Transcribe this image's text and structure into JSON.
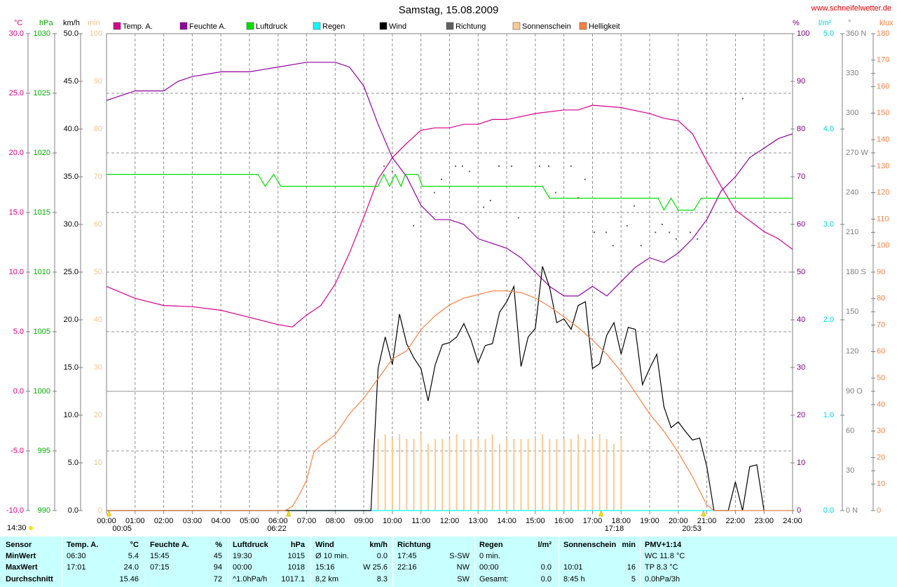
{
  "chart_data": {
    "type": "line",
    "title": "Samstag, 15.08.2009",
    "source": "www.schneifelwetter.de",
    "update_time": "14:30",
    "grid": true,
    "xlim": [
      0,
      24
    ],
    "xticks": [
      {
        "value": 0,
        "label": "00:00"
      },
      {
        "value": 1,
        "label": "01:00"
      },
      {
        "value": 2,
        "label": "02:00"
      },
      {
        "value": 3,
        "label": "03:00"
      },
      {
        "value": 4,
        "label": "04:00"
      },
      {
        "value": 5,
        "label": "05:00"
      },
      {
        "value": 6,
        "label": "06:00"
      },
      {
        "value": 7,
        "label": "07:00"
      },
      {
        "value": 8,
        "label": "08:00"
      },
      {
        "value": 9,
        "label": "09:00"
      },
      {
        "value": 10,
        "label": "10:00"
      },
      {
        "value": 11,
        "label": "11:00"
      },
      {
        "value": 12,
        "label": "12:00"
      },
      {
        "value": 13,
        "label": "13:00"
      },
      {
        "value": 14,
        "label": "14:00"
      },
      {
        "value": 15,
        "label": "15:00"
      },
      {
        "value": 16,
        "label": "16:00"
      },
      {
        "value": 17,
        "label": "17:00"
      },
      {
        "value": 18,
        "label": "18:00"
      },
      {
        "value": 19,
        "label": "19:00"
      },
      {
        "value": 20,
        "label": "20:00"
      },
      {
        "value": 21,
        "label": "21:00"
      },
      {
        "value": 22,
        "label": "22:00"
      },
      {
        "value": 23,
        "label": "23:00"
      },
      {
        "value": 24,
        "label": "24:00"
      }
    ],
    "annotations": [
      {
        "x": 0.083,
        "label": "00:05"
      },
      {
        "x": 6.367,
        "label": "06:22"
      },
      {
        "x": 17.3,
        "label": "17:18"
      },
      {
        "x": 20.883,
        "label": "20:53"
      }
    ],
    "axes": [
      {
        "name": "°C",
        "color": "#e0007f",
        "ylim": [
          -10,
          30
        ],
        "yticks": [
          {
            "value": -10,
            "label": "-10.0"
          },
          {
            "value": -5,
            "label": "-5.0"
          },
          {
            "value": 0,
            "label": "0.0"
          },
          {
            "value": 5,
            "label": "5.0"
          },
          {
            "value": 10,
            "label": "10.0"
          },
          {
            "value": 15,
            "label": "15.0"
          },
          {
            "value": 20,
            "label": "20.0"
          },
          {
            "value": 25,
            "label": "25.0"
          },
          {
            "value": 30,
            "label": "30.0"
          }
        ]
      },
      {
        "name": "hPa",
        "color": "#00b000",
        "ylim": [
          990,
          1030
        ],
        "yticks": [
          990,
          995,
          1000,
          1005,
          1010,
          1015,
          1020,
          1025,
          1030
        ]
      },
      {
        "name": "km/h",
        "color": "#000000",
        "ylim": [
          0,
          50
        ],
        "yticks": [
          {
            "value": 0,
            "label": "0.0"
          },
          {
            "value": 5,
            "label": "5.0"
          },
          {
            "value": 10,
            "label": "10.0"
          },
          {
            "value": 15,
            "label": "15.0"
          },
          {
            "value": 20,
            "label": "20.0"
          },
          {
            "value": 25,
            "label": "25.0"
          },
          {
            "value": 30,
            "label": "30.0"
          },
          {
            "value": 35,
            "label": "35.0"
          },
          {
            "value": 40,
            "label": "40.0"
          },
          {
            "value": 45,
            "label": "45.0"
          },
          {
            "value": 50,
            "label": "50.0"
          }
        ]
      },
      {
        "name": "min",
        "color": "#f5c48a",
        "ylim": [
          0,
          100
        ],
        "yticks": [
          0,
          10,
          20,
          30,
          40,
          50,
          60,
          70,
          80,
          90,
          100
        ]
      },
      {
        "name": "%",
        "color": "#800080",
        "ylim": [
          0,
          100
        ],
        "yticks": [
          0,
          10,
          20,
          30,
          40,
          50,
          60,
          70,
          80,
          90,
          100
        ]
      },
      {
        "name": "l/m²",
        "color": "#00d8d8",
        "ylim": [
          0,
          5
        ],
        "yticks": [
          {
            "value": 0,
            "label": "0.0"
          },
          {
            "value": 1,
            "label": "1.0"
          },
          {
            "value": 2,
            "label": "2.0"
          },
          {
            "value": 3,
            "label": "3.0"
          },
          {
            "value": 4,
            "label": "4.0"
          },
          {
            "value": 5,
            "label": "5.0"
          }
        ]
      },
      {
        "name": "°",
        "color": "#808080",
        "ylim": [
          0,
          360
        ],
        "yticks": [
          {
            "value": 0,
            "label": "0 N"
          },
          30,
          60,
          {
            "value": 90,
            "label": "90 O"
          },
          120,
          150,
          {
            "value": 180,
            "label": "180 S"
          },
          210,
          240,
          {
            "value": 270,
            "label": "270 W"
          },
          300,
          330,
          {
            "value": 360,
            "label": "360 N"
          }
        ]
      },
      {
        "name": "klux",
        "color": "#ff8040",
        "ylim": [
          0,
          180
        ],
        "yticks": [
          0,
          10,
          20,
          30,
          40,
          50,
          60,
          70,
          80,
          90,
          100,
          110,
          120,
          130,
          140,
          150,
          160,
          170,
          180
        ]
      }
    ],
    "series": [
      {
        "name": "Temp. A.",
        "type": "line",
        "axis": 0,
        "color": "#d8008c",
        "x": [
          0,
          1,
          2,
          3,
          4,
          5,
          6,
          6.5,
          7,
          7.5,
          8,
          8.5,
          9,
          9.5,
          10,
          10.5,
          11,
          11.5,
          12,
          12.5,
          13,
          13.5,
          14,
          15,
          16,
          16.5,
          17,
          18,
          19,
          19.5,
          20,
          20.5,
          21,
          21.5,
          22,
          22.5,
          23,
          23.5,
          24
        ],
        "values": [
          8.8,
          7.8,
          7.2,
          7.1,
          6.8,
          6.2,
          5.6,
          5.4,
          6.4,
          7.2,
          9.0,
          11.6,
          14.6,
          17.8,
          19.6,
          20.8,
          21.9,
          22.1,
          22.1,
          22.4,
          22.4,
          22.8,
          22.8,
          23.3,
          23.6,
          23.6,
          24.0,
          23.8,
          23.3,
          22.9,
          22.7,
          21.6,
          19.3,
          17.2,
          15.2,
          14.3,
          13.4,
          12.8,
          11.9
        ]
      },
      {
        "name": "Feuchte A.",
        "type": "line",
        "axis": 4,
        "color": "#9000a0",
        "x": [
          0,
          1,
          2,
          2.5,
          3,
          4,
          5,
          6,
          7,
          8,
          8.5,
          9,
          9.5,
          10,
          10.5,
          11,
          11.5,
          12,
          12.5,
          13,
          13.5,
          14,
          14.5,
          15,
          15.5,
          16,
          16.5,
          17,
          17.5,
          18,
          18.5,
          19,
          19.5,
          20,
          20.5,
          21,
          21.5,
          22,
          22.5,
          23,
          23.5,
          24
        ],
        "values": [
          86,
          88,
          88,
          90,
          91,
          92,
          92,
          93,
          94,
          94,
          93,
          89,
          81,
          74,
          70,
          64,
          61,
          61,
          60,
          57,
          56,
          55,
          53,
          50,
          47,
          45,
          45,
          47,
          45,
          48,
          51,
          53,
          52,
          54,
          57,
          61,
          67,
          70,
          74,
          76,
          78,
          79
        ]
      },
      {
        "name": "Luftdruck",
        "type": "line",
        "axis": 1,
        "color": "#00e000",
        "x": [
          0,
          5.3,
          5.55,
          5.85,
          6.1,
          9.5,
          9.7,
          9.9,
          10.1,
          10.3,
          10.45,
          10.9,
          11.05,
          15.25,
          15.5,
          19.3,
          19.5,
          19.75,
          20.0,
          20.55,
          20.8,
          24
        ],
        "values": [
          1018.2,
          1018.2,
          1017.2,
          1018.2,
          1017.2,
          1017.2,
          1018.2,
          1017.2,
          1018.2,
          1017.2,
          1018.2,
          1018.2,
          1017.2,
          1017.2,
          1016.2,
          1016.2,
          1015.2,
          1016.2,
          1015.2,
          1015.2,
          1016.2,
          1016.2
        ]
      },
      {
        "name": "Regen",
        "type": "line",
        "axis": 5,
        "color": "#00ffff",
        "x": [
          0,
          24
        ],
        "values": [
          0,
          0
        ]
      },
      {
        "name": "Wind",
        "type": "line",
        "axis": 2,
        "color": "#000000",
        "x": [
          0,
          9.25,
          9.5,
          9.75,
          10,
          10.25,
          10.5,
          10.75,
          11,
          11.25,
          11.5,
          11.75,
          12,
          12.25,
          12.5,
          12.75,
          13,
          13.25,
          13.5,
          13.75,
          14,
          14.25,
          14.5,
          14.75,
          15,
          15.25,
          15.5,
          15.75,
          16,
          16.25,
          16.5,
          16.75,
          17,
          17.25,
          17.5,
          17.75,
          18,
          18.25,
          18.5,
          18.75,
          19,
          19.25,
          19.5,
          19.75,
          20,
          20.25,
          20.5,
          20.75,
          21,
          21.25,
          21.75,
          22,
          22.25,
          22.5,
          22.75,
          23
        ],
        "values": [
          0,
          0,
          14.9,
          18.2,
          15.3,
          20.6,
          17.5,
          16.0,
          14.9,
          11.5,
          15.3,
          17.4,
          17.6,
          18.2,
          19.6,
          17.9,
          15.5,
          17.3,
          17.5,
          20.8,
          21.9,
          23.5,
          15.1,
          18.2,
          19.1,
          25.6,
          23.4,
          19.7,
          20.1,
          19.0,
          21.5,
          21.9,
          14.9,
          15.4,
          18.4,
          19.7,
          16.4,
          19.2,
          19.0,
          13.2,
          14.9,
          16.4,
          10.9,
          8.7,
          9.3,
          8.3,
          7.4,
          7.6,
          4.6,
          0,
          0,
          3.0,
          0,
          4.6,
          4.8,
          0
        ]
      },
      {
        "name": "Richtung",
        "type": "points",
        "axis": 6,
        "color": "#606060",
        "x": [
          9.71,
          10.0,
          10.74,
          11.47,
          11.72,
          12.21,
          12.45,
          12.7,
          13.19,
          13.43,
          13.73,
          14.17,
          14.41,
          15.15,
          15.47,
          15.71,
          16.25,
          16.5,
          16.74,
          17.06,
          17.48,
          17.72,
          18.21,
          18.46,
          18.7,
          19.2,
          19.44,
          19.69,
          19.93,
          20.42,
          20.67,
          22.26
        ],
        "values": [
          260,
          256,
          215,
          240,
          250,
          260,
          260,
          256,
          229,
          234,
          260,
          260,
          221,
          260,
          260,
          240,
          260,
          236,
          250,
          210,
          210,
          200,
          215,
          230,
          200,
          210,
          216,
          210,
          205,
          210,
          205,
          311
        ]
      },
      {
        "name": "Sonnenschein",
        "type": "bars",
        "axis": 3,
        "color": "#ffc890",
        "x": [
          9.5,
          9.75,
          10,
          10.25,
          10.5,
          10.75,
          11,
          11.25,
          11.5,
          11.75,
          12,
          12.25,
          12.5,
          12.75,
          13,
          13.25,
          13.5,
          13.75,
          14,
          14.25,
          14.5,
          14.75,
          15,
          15.25,
          15.5,
          15.75,
          16,
          16.25,
          16.5,
          16.75,
          17,
          17.25,
          17.5,
          17.75,
          18
        ],
        "values": [
          15,
          16,
          15,
          16,
          15,
          15,
          16,
          14,
          15,
          15,
          15,
          16,
          15,
          15,
          15,
          15,
          16,
          14,
          15,
          15,
          15,
          15,
          15,
          16,
          15,
          15,
          15,
          15,
          16,
          15,
          15,
          16,
          15,
          14,
          15
        ]
      },
      {
        "name": "Helligkeit",
        "type": "line",
        "axis": 7,
        "color": "#ff8040",
        "x": [
          0,
          6.25,
          6.5,
          6.75,
          7,
          7.25,
          7.5,
          8,
          8.5,
          9,
          9.5,
          10,
          10.5,
          11,
          11.5,
          12,
          12.5,
          13,
          13.5,
          14,
          14.5,
          15,
          15.5,
          16,
          16.5,
          17,
          17.5,
          18,
          18.5,
          19,
          19.5,
          20,
          20.5,
          20.75,
          21,
          21.25,
          24
        ],
        "values": [
          0,
          0,
          1.6,
          6.1,
          11.4,
          22,
          24.6,
          28.6,
          36.5,
          42.4,
          49.8,
          57.2,
          60.3,
          68.3,
          73.6,
          77.6,
          80.2,
          81.5,
          82.9,
          82.9,
          82.3,
          80.2,
          77.0,
          73.1,
          69.1,
          64.3,
          59.0,
          52.4,
          44.5,
          36.5,
          29.9,
          22.0,
          12.7,
          7.4,
          2.1,
          0,
          0
        ]
      }
    ]
  },
  "table": {
    "row_labels": [
      "Sensor",
      "MinWert",
      "MaxWert",
      "Durchschnitt"
    ],
    "columns": [
      {
        "header": "Temp. A.",
        "unit": "°C",
        "rows": [
          [
            "06:30",
            "5.4"
          ],
          [
            "17:01",
            "24.0"
          ],
          [
            null,
            "15.46"
          ]
        ]
      },
      {
        "header": "Feuchte A.",
        "unit": "%",
        "rows": [
          [
            "15:45",
            "45"
          ],
          [
            "07:15",
            "94"
          ],
          [
            null,
            "72"
          ]
        ]
      },
      {
        "header": "Luftdruck",
        "unit": "hPa",
        "rows": [
          [
            "19:30",
            "1015"
          ],
          [
            "00:00",
            "1018"
          ],
          [
            "^1.0hPa/h",
            "1017.1"
          ]
        ]
      },
      {
        "header": "Wind",
        "unit": "km/h",
        "rows": [
          [
            "Ø 10 min.",
            "0.0"
          ],
          [
            "15:16",
            "W 25.6"
          ],
          [
            "8,2 km",
            "8.3"
          ]
        ]
      },
      {
        "header": "Richtung",
        "unit": null,
        "rows": [
          [
            "17:45",
            "S-SW"
          ],
          [
            "22:16",
            "NW"
          ],
          [
            null,
            "SW"
          ]
        ]
      },
      {
        "header": "Regen",
        "unit": "l/m²",
        "rows": [
          [
            "0 min.",
            null
          ],
          [
            "00:00",
            "0.0"
          ],
          [
            "Gesamt:",
            "0.0"
          ]
        ]
      },
      {
        "header": "Sonnenschein",
        "unit": "min",
        "rows": [
          [
            null,
            null
          ],
          [
            "10:01",
            "16"
          ],
          [
            "8:45 h",
            "5"
          ]
        ]
      },
      {
        "header": "PMV+1:14",
        "unit": null,
        "rows": [
          [
            "WC 11.8 °C",
            null
          ],
          [
            "TP 8.3 °C",
            null
          ],
          [
            "0.0hPa/3h",
            null
          ]
        ]
      }
    ]
  }
}
